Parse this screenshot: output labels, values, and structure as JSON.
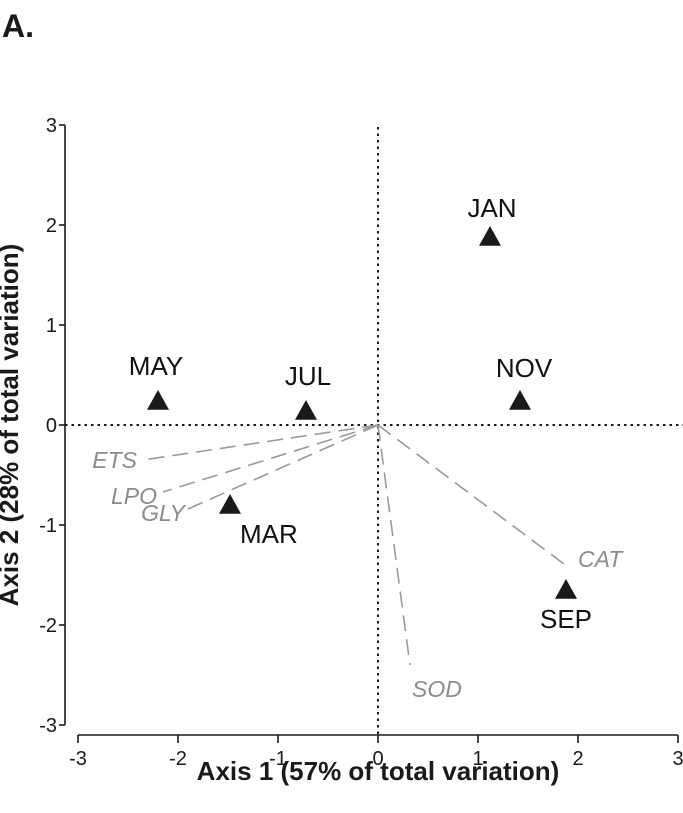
{
  "panel_label": "A.",
  "chart_data": {
    "type": "scatter",
    "xlabel": "Axis 1 (57% of total variation)",
    "ylabel": "Axis 2 (28% of total variation)",
    "xlim": [
      -3,
      3
    ],
    "ylim": [
      -3,
      3
    ],
    "x_ticks": [
      "-3",
      "-2",
      "-1",
      "0",
      "1",
      "2",
      "3"
    ],
    "y_ticks": [
      "3",
      "2",
      "1",
      "0",
      "-1",
      "-2",
      "-3"
    ],
    "grid": false,
    "reference_lines": "dotted lines at x = 0 and y = 0",
    "points": [
      {
        "label": "JAN",
        "x": 1.12,
        "y": 1.88
      },
      {
        "label": "NOV",
        "x": 1.42,
        "y": 0.24
      },
      {
        "label": "MAY",
        "x": -2.2,
        "y": 0.24
      },
      {
        "label": "JUL",
        "x": -0.72,
        "y": 0.14
      },
      {
        "label": "MAR",
        "x": -1.48,
        "y": -0.8
      },
      {
        "label": "SEP",
        "x": 1.88,
        "y": -1.65
      }
    ],
    "vectors": [
      {
        "label": "ETS",
        "x": -2.35,
        "y": -0.35
      },
      {
        "label": "LPO",
        "x": -2.15,
        "y": -0.67
      },
      {
        "label": "GLY",
        "x": -1.9,
        "y": -0.84
      },
      {
        "label": "CAT",
        "x": 1.9,
        "y": -1.42
      },
      {
        "label": "SOD",
        "x": 0.32,
        "y": -2.4
      }
    ],
    "colors": {
      "points": "#1a1a1a",
      "vectors": "#9a9a9a",
      "axes": "#1a1a1a"
    }
  }
}
